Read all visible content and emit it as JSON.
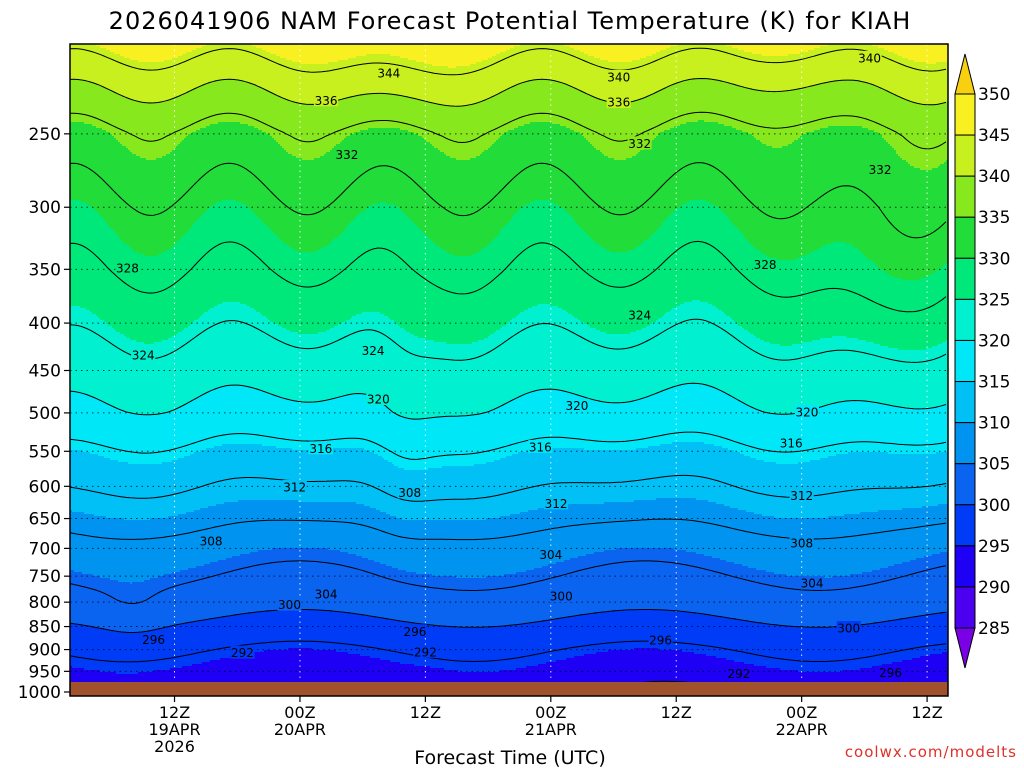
{
  "chart_data": {
    "type": "heatmap",
    "title": "2026041906 NAM Forecast Potential Temperature (K) for KIAH",
    "xlabel": "Forecast Time (UTC)",
    "ylabel": "",
    "watermark": "coolwx.com/modelts",
    "y_axis": {
      "scale": "log-pressure",
      "range_hpa": [
        1010,
        200
      ],
      "tick_labels": [
        "250",
        "300",
        "350",
        "400",
        "450",
        "500",
        "550",
        "600",
        "650",
        "700",
        "750",
        "800",
        "850",
        "900",
        "950",
        "1000"
      ]
    },
    "x_axis": {
      "range_hours": [
        -4,
        80
      ],
      "ticks": [
        {
          "hour": 6,
          "lines": [
            "12Z",
            "19APR",
            "2026"
          ]
        },
        {
          "hour": 18,
          "lines": [
            "00Z",
            "20APR"
          ]
        },
        {
          "hour": 30,
          "lines": [
            "12Z"
          ]
        },
        {
          "hour": 42,
          "lines": [
            "00Z",
            "21APR"
          ]
        },
        {
          "hour": 54,
          "lines": [
            "12Z"
          ]
        },
        {
          "hour": 66,
          "lines": [
            "00Z",
            "22APR"
          ]
        },
        {
          "hour": 78,
          "lines": [
            "12Z"
          ]
        }
      ]
    },
    "colorbar": {
      "labels": [
        "350",
        "345",
        "340",
        "335",
        "330",
        "325",
        "320",
        "315",
        "310",
        "305",
        "300",
        "295",
        "290",
        "285"
      ],
      "levels": [
        285,
        290,
        295,
        300,
        305,
        310,
        315,
        320,
        325,
        330,
        335,
        340,
        345,
        350
      ],
      "colors": [
        "#7a00e6",
        "#4c00f0",
        "#1e00f5",
        "#003cf5",
        "#0a64f0",
        "#0094f0",
        "#00c0f5",
        "#00e8f8",
        "#00f0d0",
        "#00e87a",
        "#22dc3a",
        "#88e81e",
        "#c8f01e",
        "#f8f020",
        "#f8d010"
      ]
    },
    "profile": [
      {
        "p": 1000,
        "theta": 293
      },
      {
        "p": 950,
        "theta": 294
      },
      {
        "p": 900,
        "theta": 296
      },
      {
        "p": 850,
        "theta": 299
      },
      {
        "p": 800,
        "theta": 302
      },
      {
        "p": 750,
        "theta": 304
      },
      {
        "p": 700,
        "theta": 306
      },
      {
        "p": 650,
        "theta": 309
      },
      {
        "p": 600,
        "theta": 312
      },
      {
        "p": 550,
        "theta": 315
      },
      {
        "p": 500,
        "theta": 319
      },
      {
        "p": 450,
        "theta": 322
      },
      {
        "p": 400,
        "theta": 325
      },
      {
        "p": 350,
        "theta": 328
      },
      {
        "p": 300,
        "theta": 331
      },
      {
        "p": 250,
        "theta": 335
      },
      {
        "p": 220,
        "theta": 341
      },
      {
        "p": 200,
        "theta": 346
      }
    ],
    "contour_levels": [
      292,
      296,
      300,
      304,
      308,
      312,
      316,
      320,
      324,
      328,
      332,
      336,
      340,
      344
    ],
    "contour_labels": [
      {
        "value": "344",
        "hour": 26.5,
        "p": 215
      },
      {
        "value": "340",
        "hour": 48.5,
        "p": 217
      },
      {
        "value": "340",
        "hour": 72.5,
        "p": 207
      },
      {
        "value": "336",
        "hour": 20.5,
        "p": 230
      },
      {
        "value": "336",
        "hour": 48.5,
        "p": 231
      },
      {
        "value": "332",
        "hour": 22.5,
        "p": 263
      },
      {
        "value": "332",
        "hour": 50.5,
        "p": 256
      },
      {
        "value": "332",
        "hour": 73.5,
        "p": 273
      },
      {
        "value": "328",
        "hour": 1.5,
        "p": 349
      },
      {
        "value": "328",
        "hour": 62.5,
        "p": 346
      },
      {
        "value": "324",
        "hour": 3,
        "p": 433
      },
      {
        "value": "324",
        "hour": 25,
        "p": 428
      },
      {
        "value": "324",
        "hour": 50.5,
        "p": 392
      },
      {
        "value": "320",
        "hour": 25.5,
        "p": 483
      },
      {
        "value": "320",
        "hour": 44.5,
        "p": 491
      },
      {
        "value": "320",
        "hour": 66.5,
        "p": 499
      },
      {
        "value": "316",
        "hour": 20,
        "p": 546
      },
      {
        "value": "316",
        "hour": 41,
        "p": 544
      },
      {
        "value": "316",
        "hour": 65,
        "p": 539
      },
      {
        "value": "312",
        "hour": 17.5,
        "p": 601
      },
      {
        "value": "312",
        "hour": 42.5,
        "p": 626
      },
      {
        "value": "312",
        "hour": 66,
        "p": 614
      },
      {
        "value": "308",
        "hour": 9.5,
        "p": 687
      },
      {
        "value": "308",
        "hour": 28.5,
        "p": 609
      },
      {
        "value": "308",
        "hour": 66,
        "p": 691
      },
      {
        "value": "304",
        "hour": 20.5,
        "p": 784
      },
      {
        "value": "304",
        "hour": 42,
        "p": 711
      },
      {
        "value": "304",
        "hour": 67,
        "p": 763
      },
      {
        "value": "300",
        "hour": 17,
        "p": 805
      },
      {
        "value": "300",
        "hour": 43,
        "p": 788
      },
      {
        "value": "300",
        "hour": 70.5,
        "p": 853
      },
      {
        "value": "296",
        "hour": 4,
        "p": 878
      },
      {
        "value": "296",
        "hour": 29,
        "p": 860
      },
      {
        "value": "296",
        "hour": 52.5,
        "p": 879
      },
      {
        "value": "296",
        "hour": 74.5,
        "p": 953
      },
      {
        "value": "292",
        "hour": 12.5,
        "p": 907
      },
      {
        "value": "292",
        "hour": 30,
        "p": 905
      },
      {
        "value": "292",
        "hour": 60,
        "p": 955
      }
    ]
  }
}
